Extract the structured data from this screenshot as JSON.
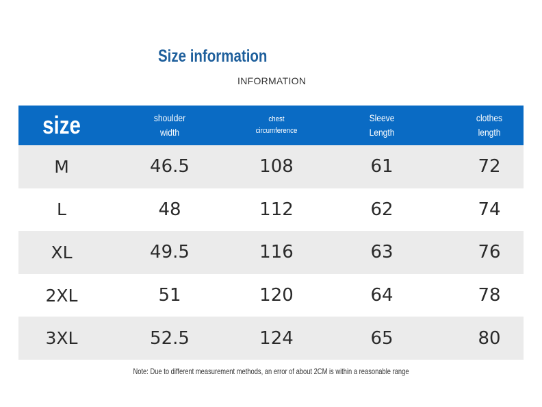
{
  "title": "Size information",
  "subtitle": "INFORMATION",
  "header": {
    "size": "size",
    "shoulder_line1": "shoulder",
    "shoulder_line2": "width",
    "chest_line1": "chest",
    "chest_line2": "circumference",
    "sleeve_line1": "Sleeve",
    "sleeve_line2": "Length",
    "clothes_line1": "clothes",
    "clothes_line2": "length"
  },
  "rows": [
    {
      "size": "M",
      "shoulder": "46.5",
      "chest": "108",
      "sleeve": "61",
      "clothes": "72"
    },
    {
      "size": "L",
      "shoulder": "48",
      "chest": "112",
      "sleeve": "62",
      "clothes": "74"
    },
    {
      "size": "XL",
      "shoulder": "49.5",
      "chest": "116",
      "sleeve": "63",
      "clothes": "76"
    },
    {
      "size": "2XL",
      "shoulder": "51",
      "chest": "120",
      "sleeve": "64",
      "clothes": "78"
    },
    {
      "size": "3XL",
      "shoulder": "52.5",
      "chest": "124",
      "sleeve": "65",
      "clothes": "80"
    }
  ],
  "note": "Note: Due to different measurement methods, an error of about 2CM is within a reasonable range",
  "colors": {
    "header_bg": "#0a6bc4",
    "title": "#1e5f9c",
    "row_shaded": "#ebebeb"
  }
}
